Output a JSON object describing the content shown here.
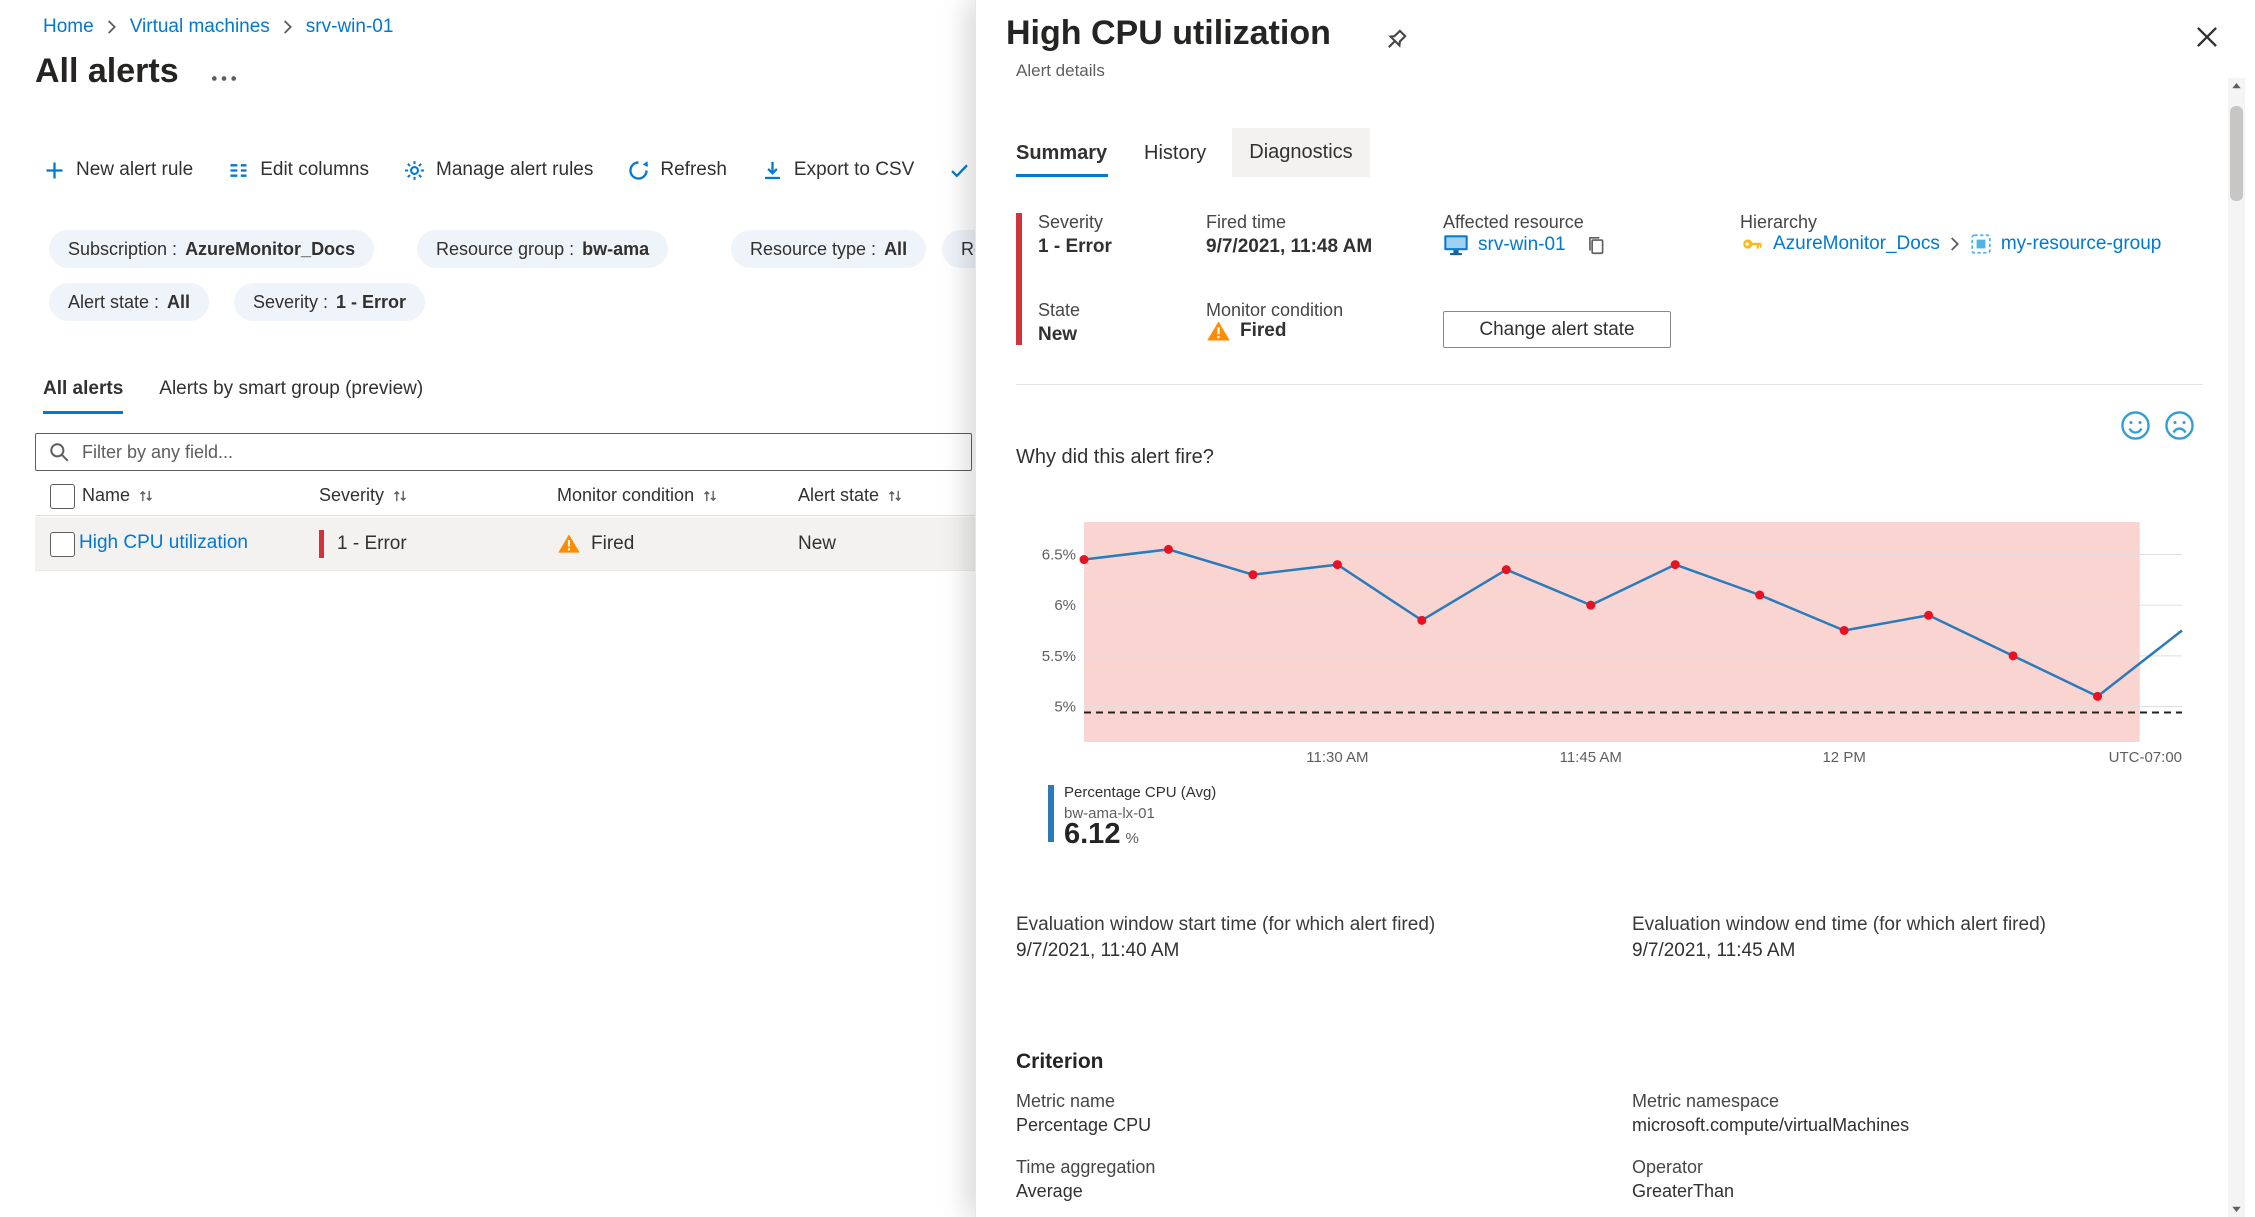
{
  "colors": {
    "link": "#0078d4",
    "severity": "#d13438",
    "warning": "#ff8c00",
    "feedback": "#2f9ed5"
  },
  "icons": {
    "toolbar": [
      "plus-icon",
      "edit-columns-icon",
      "gear-icon",
      "refresh-icon",
      "download-icon",
      "check-icon"
    ],
    "other": [
      "search-icon",
      "sort-icon",
      "warning-triangle-icon",
      "pin-icon",
      "close-icon",
      "copy-icon",
      "vm-icon",
      "key-icon",
      "resource-group-icon",
      "smiley-happy-icon",
      "smiley-sad-icon",
      "more-icon",
      "chevron-right-icon"
    ]
  },
  "breadcrumb": {
    "items": [
      {
        "label": "Home"
      },
      {
        "label": "Virtual machines"
      },
      {
        "label": "srv-win-01"
      }
    ]
  },
  "page": {
    "title": "All alerts"
  },
  "toolbar": {
    "items": [
      {
        "label": "New alert rule"
      },
      {
        "label": "Edit columns"
      },
      {
        "label": "Manage alert rules"
      },
      {
        "label": "Refresh"
      },
      {
        "label": "Export to CSV"
      }
    ]
  },
  "filters": {
    "row1": [
      {
        "label": "Subscription :",
        "value": "AzureMonitor_Docs"
      },
      {
        "label": "Resource group :",
        "value": "bw-ama"
      },
      {
        "label": "Resource type :",
        "value": "All"
      },
      {
        "label": "Re"
      }
    ],
    "row2": [
      {
        "label": "Alert state :",
        "value": "All"
      },
      {
        "label": "Severity :",
        "value": "1 - Error"
      }
    ]
  },
  "list_tabs": {
    "all": "All alerts",
    "smart": "Alerts by smart group (preview)"
  },
  "search": {
    "placeholder": "Filter by any field..."
  },
  "table": {
    "headers": {
      "name": "Name",
      "severity": "Severity",
      "condition": "Monitor condition",
      "state": "Alert state"
    },
    "row": {
      "name": "High CPU utilization",
      "severity": "1 - Error",
      "condition": "Fired",
      "state": "New"
    }
  },
  "panel": {
    "title": "High CPU utilization",
    "subtitle": "Alert details",
    "tabs": {
      "summary": "Summary",
      "history": "History",
      "diagnostics": "Diagnostics"
    },
    "details": {
      "severity_label": "Severity",
      "severity_value": "1 - Error",
      "fired_label": "Fired time",
      "fired_value": "9/7/2021, 11:48 AM",
      "resource_label": "Affected resource",
      "resource_value": "srv-win-01",
      "hierarchy_label": "Hierarchy",
      "hierarchy_subscription": "AzureMonitor_Docs",
      "hierarchy_resource_group": "my-resource-group",
      "state_label": "State",
      "state_value": "New",
      "condition_label": "Monitor condition",
      "condition_value": "Fired",
      "change_state_button": "Change alert state"
    },
    "why_title": "Why did this alert fire?",
    "evaluation": {
      "start_label": "Evaluation window start time (for which alert fired)",
      "start_value": "9/7/2021, 11:40 AM",
      "end_label": "Evaluation window end time (for which alert fired)",
      "end_value": "9/7/2021, 11:45 AM"
    },
    "criterion": {
      "heading": "Criterion",
      "metric_name_label": "Metric name",
      "metric_name_value": "Percentage CPU",
      "namespace_label": "Metric namespace",
      "namespace_value": "microsoft.compute/virtualMachines",
      "aggregation_label": "Time aggregation",
      "aggregation_value": "Average",
      "operator_label": "Operator",
      "operator_value": "GreaterThan"
    }
  },
  "chart_data": {
    "type": "line",
    "title": "Why did this alert fire?",
    "series": [
      {
        "name": "Percentage CPU (Avg)",
        "resource": "bw-ama-lx-01",
        "unit": "%",
        "current_value": "6.12",
        "x_minutes": [
          0,
          5,
          10,
          15,
          20,
          25,
          30,
          35,
          40,
          45,
          50,
          55,
          60,
          65
        ],
        "values": [
          6.45,
          6.55,
          6.3,
          6.4,
          5.85,
          6.35,
          6.0,
          6.4,
          6.1,
          5.75,
          5.9,
          5.5,
          5.1,
          5.75
        ]
      }
    ],
    "x_ticks": [
      {
        "min": 15,
        "label": "11:30 AM"
      },
      {
        "min": 30,
        "label": "11:45 AM"
      },
      {
        "min": 45,
        "label": "12 PM"
      }
    ],
    "timezone_label": "UTC-07:00",
    "y_ticks": [
      {
        "value": 6.5,
        "label": "6.5%"
      },
      {
        "value": 6.0,
        "label": "6%"
      },
      {
        "value": 5.5,
        "label": "5.5%"
      },
      {
        "value": 5.0,
        "label": "5%"
      }
    ],
    "ylim": [
      4.65,
      6.82
    ],
    "threshold": 5,
    "threshold_line_style": "dashed",
    "shaded_region": {
      "start_min": 0,
      "end_min": 62.5
    },
    "grid": true,
    "legend_position": "bottom-left",
    "omit_last_dot": true,
    "colors": {
      "line": "#2b7bba",
      "point": "#e81123",
      "region": "#f4a09a",
      "region_opacity": 0.45,
      "grid": "#e1dfdd",
      "threshold": "#222222"
    }
  }
}
